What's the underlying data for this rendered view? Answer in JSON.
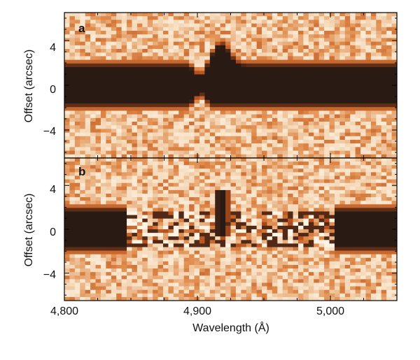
{
  "chart_data": [
    {
      "type": "heatmap",
      "panel_label": "a",
      "xlabel": "",
      "ylabel": "Offset (arcsec)",
      "xlim": [
        4800,
        5050
      ],
      "ylim": [
        -6.5,
        6.5
      ],
      "yticks": [
        4,
        0,
        -4
      ],
      "ytick_labels": [
        "4",
        "0",
        "−4"
      ],
      "xticks": [
        4800,
        4900,
        5000
      ],
      "band_center_arcsec": 0,
      "band_half_width_arcsec": 1.6,
      "dip_wavelength": 4902,
      "peak_wavelength": 4918,
      "peak_extent_arcsec": 3.5
    },
    {
      "type": "heatmap",
      "panel_label": "b",
      "xlabel": "Wavelength (Å)",
      "ylabel": "Offset (arcsec)",
      "xlim": [
        4800,
        5050
      ],
      "ylim": [
        -6.5,
        6.5
      ],
      "yticks": [
        4,
        0,
        -4
      ],
      "ytick_labels": [
        "4",
        "0",
        "−4"
      ],
      "xticks": [
        4800,
        4900,
        5000
      ],
      "xtick_labels": [
        "4,800",
        "4,900",
        "5,000"
      ],
      "band_center_arcsec": 0,
      "band_half_width_arcsec": 1.6,
      "subtracted_range": [
        4848,
        5002
      ],
      "residual_peak_wavelength": 4918,
      "residual_peak_extent_arcsec": [
        -0.5,
        3.5
      ]
    }
  ],
  "colors": {
    "background_light": "#f4d7b6",
    "background_mid": "#e08a4a",
    "background_dark": "#b8501c",
    "band": "#2a1a14",
    "frame": "#000000"
  }
}
